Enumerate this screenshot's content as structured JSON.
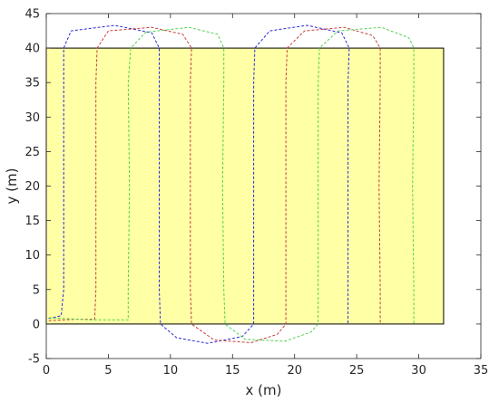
{
  "chart_data": {
    "type": "line",
    "title": "",
    "xlabel": "x (m)",
    "ylabel": "y (m)",
    "xlim": [
      0,
      35
    ],
    "ylim": [
      -5,
      45
    ],
    "xticks": [
      0,
      5,
      10,
      15,
      20,
      25,
      30,
      35
    ],
    "yticks": [
      -5,
      0,
      5,
      10,
      15,
      20,
      25,
      30,
      35,
      40,
      45
    ],
    "grid": false,
    "field": {
      "x": [
        0,
        32
      ],
      "y": [
        0,
        40
      ],
      "fill": "#ffffa6",
      "stroke": "#000000"
    },
    "series": [
      {
        "color": "#2a2ad8",
        "style": "dashed",
        "points": [
          [
            0.2,
            0.8
          ],
          [
            1.2,
            1.2
          ],
          [
            1.4,
            5
          ],
          [
            1.4,
            20
          ],
          [
            1.4,
            35
          ],
          [
            1.4,
            40
          ],
          [
            2.0,
            42.5
          ],
          [
            5.5,
            43.3
          ],
          [
            8.5,
            42.2
          ],
          [
            9.1,
            40
          ],
          [
            9.1,
            35
          ],
          [
            9.1,
            20
          ],
          [
            9.1,
            5
          ],
          [
            9.2,
            0
          ],
          [
            10.5,
            -2
          ],
          [
            13.0,
            -2.8
          ],
          [
            15.8,
            -1.8
          ],
          [
            16.7,
            0
          ],
          [
            16.7,
            5
          ],
          [
            16.7,
            20
          ],
          [
            16.7,
            35
          ],
          [
            16.8,
            40
          ],
          [
            18.0,
            42.5
          ],
          [
            21.0,
            43.3
          ],
          [
            23.8,
            42.2
          ],
          [
            24.4,
            40
          ],
          [
            24.3,
            35
          ],
          [
            24.3,
            20
          ],
          [
            24.3,
            5
          ],
          [
            24.3,
            0
          ]
        ]
      },
      {
        "color": "#c83c3c",
        "style": "dashed",
        "points": [
          [
            0.2,
            0.5
          ],
          [
            2.5,
            0.7
          ],
          [
            3.9,
            0.7
          ],
          [
            4.0,
            5
          ],
          [
            4.0,
            20
          ],
          [
            4.0,
            35
          ],
          [
            4.1,
            40
          ],
          [
            5.0,
            42.5
          ],
          [
            8.5,
            43.0
          ],
          [
            11.0,
            42.0
          ],
          [
            11.7,
            40
          ],
          [
            11.6,
            35
          ],
          [
            11.6,
            20
          ],
          [
            11.6,
            5
          ],
          [
            11.7,
            0
          ],
          [
            13.5,
            -2.3
          ],
          [
            16.5,
            -2.7
          ],
          [
            18.6,
            -1.5
          ],
          [
            19.3,
            0
          ],
          [
            19.3,
            5
          ],
          [
            19.3,
            20
          ],
          [
            19.3,
            35
          ],
          [
            19.4,
            40
          ],
          [
            20.8,
            42.5
          ],
          [
            24.0,
            43.0
          ],
          [
            26.3,
            41.8
          ],
          [
            26.9,
            40
          ],
          [
            26.9,
            35
          ],
          [
            26.8,
            20
          ],
          [
            26.9,
            5
          ],
          [
            26.9,
            0
          ]
        ]
      },
      {
        "color": "#52d252",
        "style": "dashed",
        "points": [
          [
            0.2,
            0.9
          ],
          [
            3.5,
            0.6
          ],
          [
            6.6,
            0.6
          ],
          [
            6.6,
            5
          ],
          [
            6.7,
            20
          ],
          [
            6.6,
            35
          ],
          [
            6.8,
            40
          ],
          [
            8.0,
            42.3
          ],
          [
            11.5,
            43.0
          ],
          [
            13.8,
            42.0
          ],
          [
            14.3,
            40
          ],
          [
            14.3,
            35
          ],
          [
            14.2,
            20
          ],
          [
            14.3,
            5
          ],
          [
            14.4,
            0
          ],
          [
            16.0,
            -2.2
          ],
          [
            19.2,
            -2.5
          ],
          [
            21.3,
            -1.2
          ],
          [
            21.9,
            0
          ],
          [
            21.9,
            5
          ],
          [
            21.9,
            20
          ],
          [
            21.9,
            35
          ],
          [
            22.0,
            40
          ],
          [
            23.5,
            42.5
          ],
          [
            27.0,
            43.0
          ],
          [
            29.2,
            41.5
          ],
          [
            29.6,
            40
          ],
          [
            29.6,
            35
          ],
          [
            29.5,
            20
          ],
          [
            29.6,
            5
          ],
          [
            29.6,
            0
          ]
        ]
      }
    ]
  }
}
